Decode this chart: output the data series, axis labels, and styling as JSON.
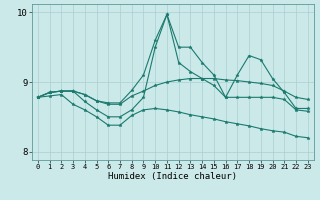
{
  "xlabel": "Humidex (Indice chaleur)",
  "background_color": "#cce9ea",
  "grid_color": "#aacfcf",
  "line_color": "#1a7a6e",
  "xlim": [
    -0.5,
    23.5
  ],
  "ylim": [
    7.88,
    10.12
  ],
  "yticks": [
    8,
    9,
    10
  ],
  "xticks": [
    0,
    1,
    2,
    3,
    4,
    5,
    6,
    7,
    8,
    9,
    10,
    11,
    12,
    13,
    14,
    15,
    16,
    17,
    18,
    19,
    20,
    21,
    22,
    23
  ],
  "lines": [
    {
      "x": [
        0,
        1,
        2,
        3,
        4,
        5,
        6,
        7,
        8,
        9,
        10,
        11,
        12,
        13,
        14,
        15,
        16,
        17,
        18,
        19,
        20,
        21,
        22,
        23
      ],
      "y": [
        8.78,
        8.85,
        8.87,
        8.87,
        8.82,
        8.73,
        8.7,
        8.7,
        8.88,
        9.1,
        9.6,
        9.97,
        9.5,
        9.5,
        9.28,
        9.1,
        8.78,
        9.1,
        9.38,
        9.32,
        9.05,
        8.85,
        8.62,
        8.62
      ]
    },
    {
      "x": [
        0,
        1,
        2,
        3,
        4,
        5,
        6,
        7,
        8,
        9,
        10,
        11,
        12,
        13,
        14,
        15,
        16,
        17,
        18,
        19,
        20,
        21,
        22,
        23
      ],
      "y": [
        8.78,
        8.85,
        8.87,
        8.87,
        8.72,
        8.6,
        8.5,
        8.5,
        8.6,
        8.78,
        9.5,
        9.97,
        9.28,
        9.15,
        9.05,
        8.95,
        8.78,
        8.78,
        8.78,
        8.78,
        8.78,
        8.75,
        8.6,
        8.58
      ]
    },
    {
      "x": [
        0,
        1,
        2,
        3,
        4,
        5,
        6,
        7,
        8,
        9,
        10,
        11,
        12,
        13,
        14,
        15,
        16,
        17,
        18,
        19,
        20,
        21,
        22,
        23
      ],
      "y": [
        8.78,
        8.85,
        8.87,
        8.87,
        8.82,
        8.73,
        8.68,
        8.68,
        8.8,
        8.87,
        8.95,
        9.0,
        9.03,
        9.05,
        9.05,
        9.05,
        9.03,
        9.02,
        9.0,
        8.98,
        8.95,
        8.87,
        8.78,
        8.75
      ]
    },
    {
      "x": [
        0,
        1,
        2,
        3,
        4,
        5,
        6,
        7,
        8,
        9,
        10,
        11,
        12,
        13,
        14,
        15,
        16,
        17,
        18,
        19,
        20,
        21,
        22,
        23
      ],
      "y": [
        8.78,
        8.8,
        8.82,
        8.68,
        8.6,
        8.5,
        8.38,
        8.38,
        8.52,
        8.6,
        8.62,
        8.6,
        8.57,
        8.53,
        8.5,
        8.47,
        8.43,
        8.4,
        8.37,
        8.33,
        8.3,
        8.28,
        8.22,
        8.2
      ]
    }
  ]
}
